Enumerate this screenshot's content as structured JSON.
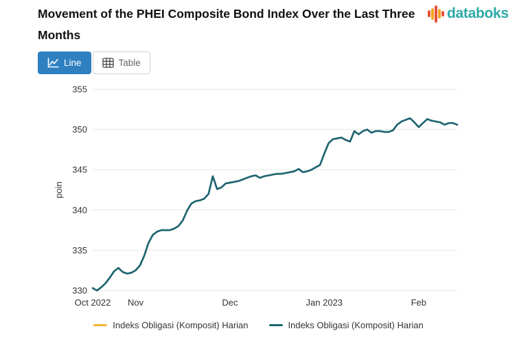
{
  "header": {
    "title": "Movement of the PHEI Composite Bond Index Over the Last Three Months",
    "logo_text": "databoks",
    "logo_text_color": "#2ca9a4",
    "logo_bar_colors": [
      "#e8503a",
      "#f5a623",
      "#e8503a",
      "#f5a623",
      "#e8503a"
    ]
  },
  "toolbar": {
    "line_label": "Line",
    "table_label": "Table",
    "active_color": "#2e80c1"
  },
  "chart_data": {
    "type": "line",
    "title": "Movement of the PHEI Composite Bond Index Over the Last Three Months",
    "xlabel": "",
    "ylabel": "poin",
    "ylim": [
      330,
      355
    ],
    "yticks": [
      330,
      335,
      340,
      345,
      350,
      355
    ],
    "grid": "horizontal-only",
    "grid_color": "#e6e6e6",
    "axis_label_color": "#333333",
    "legend_position": "bottom",
    "xticks": [
      {
        "label": "Oct 2022",
        "index": 0
      },
      {
        "label": "Nov",
        "index": 10
      },
      {
        "label": "Dec",
        "index": 32
      },
      {
        "label": "Jan 2023",
        "index": 54
      },
      {
        "label": "Feb",
        "index": 76
      }
    ],
    "legend": [
      {
        "name": "Indeks Obligasi (Komposit) Harian",
        "color": "#f2b630"
      },
      {
        "name": "Indeks Obligasi (Komposit) Harian",
        "color": "#1e6470"
      }
    ],
    "series": [
      {
        "name": "Indeks Obligasi (Komposit) Harian",
        "color": "#1e6470",
        "values": [
          330.3,
          330.0,
          330.4,
          330.9,
          331.6,
          332.4,
          332.8,
          332.3,
          332.1,
          332.2,
          332.5,
          333.1,
          334.3,
          335.9,
          336.9,
          337.3,
          337.5,
          337.5,
          337.5,
          337.7,
          338.0,
          338.7,
          339.9,
          340.8,
          341.1,
          341.2,
          341.4,
          342.0,
          344.2,
          342.6,
          342.8,
          343.3,
          343.4,
          343.5,
          343.6,
          343.8,
          344.0,
          344.2,
          344.3,
          344.0,
          344.2,
          344.3,
          344.4,
          344.5,
          344.5,
          344.6,
          344.7,
          344.8,
          345.1,
          344.7,
          344.8,
          345.0,
          345.3,
          345.6,
          347.0,
          348.3,
          348.8,
          348.9,
          349.0,
          348.7,
          348.5,
          349.8,
          349.4,
          349.8,
          350.0,
          349.6,
          349.8,
          349.8,
          349.7,
          349.7,
          349.9,
          350.6,
          351.0,
          351.2,
          351.4,
          350.9,
          350.3,
          350.8,
          351.3,
          351.1,
          351.0,
          350.9,
          350.6,
          350.8,
          350.8,
          350.6
        ]
      }
    ]
  }
}
